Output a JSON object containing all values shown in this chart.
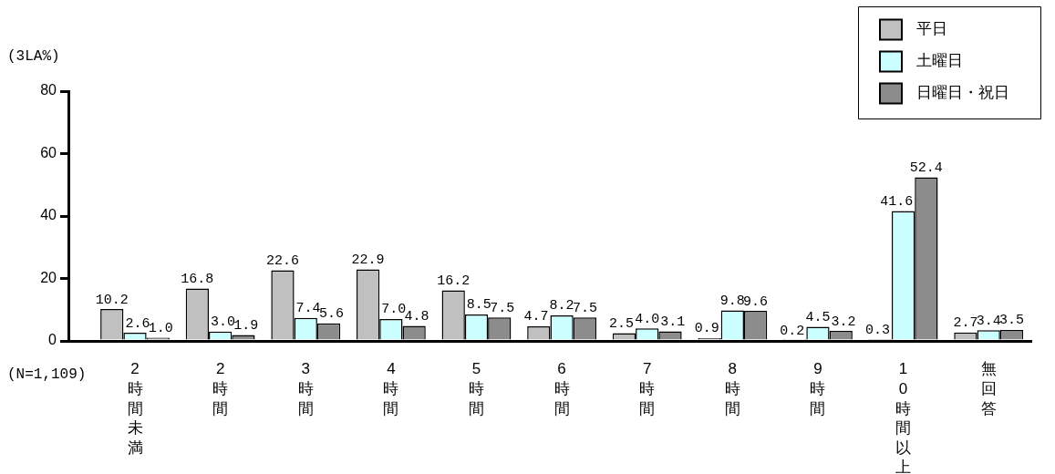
{
  "chart_data": {
    "type": "bar",
    "ylabel": "(3LA%)",
    "categories": [
      "2時間未満",
      "2時間",
      "3時間",
      "4時間",
      "5時間",
      "6時間",
      "7時間",
      "8時間",
      "9時間",
      "10時間以上",
      "無回答"
    ],
    "series": [
      {
        "name": "平日",
        "color": "#c0c0c0",
        "values": [
          10.2,
          16.8,
          22.6,
          22.9,
          16.2,
          4.7,
          2.5,
          0.9,
          0.2,
          0.3,
          2.7
        ],
        "value_labels": [
          "10.2",
          "16.8",
          "22.6",
          "22.9",
          "16.2",
          "4.7",
          "2.5",
          "0.9",
          "0.2",
          "0.3",
          "2.7"
        ]
      },
      {
        "name": "土曜日",
        "color": "#ccffff",
        "values": [
          2.6,
          3.0,
          7.4,
          7.0,
          8.5,
          8.2,
          4.0,
          9.8,
          4.5,
          41.6,
          3.4
        ],
        "value_labels": [
          "2.6",
          "3.0",
          "7.4",
          "7.0",
          "8.5",
          "8.2",
          "4.0",
          "9.8",
          "4.5",
          "41.6",
          "3.4"
        ]
      },
      {
        "name": "日曜日・祝日",
        "color": "#8c8c8c",
        "values": [
          1.0,
          1.9,
          5.6,
          4.8,
          7.5,
          7.5,
          3.1,
          9.6,
          3.2,
          52.4,
          3.5
        ],
        "value_labels": [
          "1.0",
          "1.9",
          "5.6",
          "4.8",
          "7.5",
          "7.5",
          "3.1",
          "9.6",
          "3.2",
          "52.4",
          "3.5"
        ]
      }
    ],
    "ylim": [
      0,
      80
    ],
    "yticks": [
      0,
      20,
      40,
      60,
      80
    ],
    "grid": false,
    "legend": "top right",
    "annotations": [
      "(N=1,109)"
    ]
  }
}
